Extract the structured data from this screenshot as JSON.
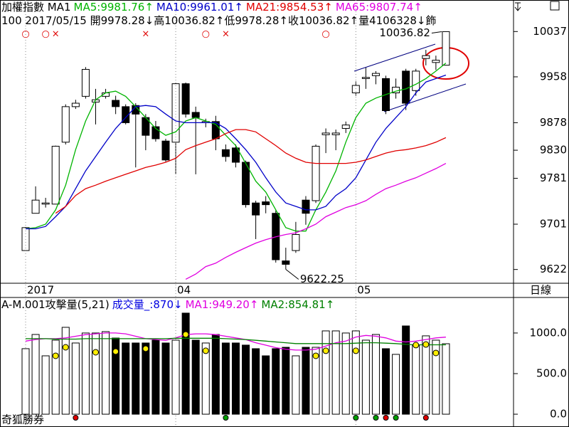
{
  "chart_data": [
    {
      "type": "candlestick",
      "title": "加權指數 MA1",
      "info": "100 2017/05/15 開9978.28↓高10036.82↑低9978.28↑收10036.82↑量4106328↓飾",
      "period": "日線",
      "categories": [
        "2017",
        null,
        null,
        null,
        null,
        null,
        null,
        null,
        null,
        null,
        null,
        null,
        null,
        null,
        null,
        "04",
        null,
        null,
        null,
        null,
        null,
        null,
        null,
        null,
        null,
        null,
        null,
        null,
        null,
        null,
        null,
        null,
        null,
        "05",
        null,
        null,
        null,
        null,
        null,
        null,
        null,
        null,
        null
      ],
      "open": [
        9655,
        9720,
        9736,
        9736,
        9844,
        9906,
        9924,
        9914,
        9924,
        9917,
        9906,
        9908,
        9887,
        9871,
        9846,
        9844,
        9946,
        9896,
        9878,
        9880,
        9831,
        9834,
        9809,
        9738,
        9740,
        9720,
        9637,
        9655,
        9743,
        9742,
        9857,
        9857,
        9868,
        9930,
        9955,
        9960,
        9955,
        9930,
        9968,
        9934,
        9990,
        9983,
        9978.28
      ],
      "high": [
        9696,
        9767,
        9747,
        9838,
        9910,
        9918,
        9975,
        9937,
        9937,
        9925,
        9910,
        9912,
        9893,
        9881,
        9850,
        9948,
        9948,
        9906,
        9885,
        9890,
        9840,
        9840,
        9812,
        9742,
        9750,
        9725,
        9660,
        9705,
        9750,
        9840,
        9868,
        9866,
        9880,
        9950,
        9974,
        9968,
        9960,
        9955,
        9972,
        9972,
        10005,
        9995,
        10036.82
      ],
      "low": [
        9655,
        9720,
        9730,
        9736,
        9840,
        9902,
        9920,
        9875,
        9920,
        9893,
        9875,
        9800,
        9830,
        9845,
        9810,
        9788,
        9887,
        9788,
        9870,
        9830,
        9810,
        9800,
        9730,
        9675,
        9720,
        9634,
        9622.25,
        9651,
        9700,
        9738,
        9825,
        9830,
        9860,
        9925,
        9937,
        9945,
        9893,
        9920,
        9900,
        9925,
        9978,
        9970,
        9978.28
      ],
      "close": [
        9695,
        9743,
        9738,
        9837,
        9906,
        9912,
        9971,
        9918,
        9930,
        9906,
        9878,
        9893,
        9856,
        9850,
        9813,
        9946,
        9893,
        9887,
        9880,
        9850,
        9819,
        9809,
        9735,
        9717,
        9735,
        9639,
        9631,
        9683,
        9720,
        9837,
        9860,
        9860,
        9874,
        9943,
        9957,
        9964,
        9899,
        9940,
        9912,
        9968,
        9995,
        9987,
        10036.82
      ],
      "up_color": "#ffffff",
      "down_color": "#000000",
      "series": [
        {
          "name": "MA5:9981.76↑",
          "color": "#00b400",
          "values": [
            9693,
            9695,
            9701,
            9726,
            9769,
            9831,
            9881,
            9918,
            9930,
            9933,
            9924,
            9906,
            9887,
            9868,
            9856,
            9862,
            9881,
            9887,
            9881,
            9875,
            9856,
            9838,
            9807,
            9776,
            9757,
            9726,
            9695,
            9689,
            9689,
            9726,
            9757,
            9794,
            9844,
            9887,
            9912,
            9921,
            9927,
            9933,
            9937,
            9945,
            9955,
            9968,
            9982
          ]
        },
        {
          "name": "MA10:9961.01↑",
          "color": "#0000c8",
          "values": [
            9693,
            9693,
            9697,
            9714,
            9732,
            9763,
            9794,
            9819,
            9844,
            9868,
            9887,
            9906,
            9908,
            9906,
            9893,
            9881,
            9878,
            9878,
            9878,
            9878,
            9868,
            9850,
            9831,
            9809,
            9782,
            9757,
            9738,
            9732,
            9726,
            9726,
            9732,
            9751,
            9763,
            9782,
            9813,
            9844,
            9868,
            9887,
            9906,
            9930,
            9949,
            9955,
            9961
          ]
        },
        {
          "name": "MA21:9854.53↑",
          "color": "#e00000",
          "values": [
            null,
            null,
            null,
            9720,
            9732,
            9751,
            9763,
            9769,
            9776,
            9782,
            9788,
            9794,
            9800,
            9804,
            9809,
            9816,
            9831,
            9838,
            9844,
            9850,
            9859,
            9866,
            9866,
            9862,
            9850,
            9838,
            9825,
            9816,
            9809,
            9807,
            9807,
            9807,
            9807,
            9809,
            9813,
            9819,
            9825,
            9829,
            9831,
            9834,
            9838,
            9844,
            9852
          ]
        },
        {
          "name": "MA65:9807.74↑",
          "color": "#e000e0",
          "values": [
            null,
            null,
            null,
            null,
            null,
            null,
            null,
            null,
            null,
            null,
            null,
            null,
            null,
            null,
            null,
            null,
            9605,
            9614,
            9627,
            9633,
            9643,
            9652,
            9660,
            9668,
            9674,
            9679,
            9683,
            9686,
            9693,
            9701,
            9714,
            9722,
            9730,
            9735,
            9742,
            9753,
            9763,
            9769,
            9776,
            9782,
            9790,
            9798,
            9807
          ]
        }
      ],
      "signals": [
        "○",
        null,
        "○",
        "×",
        null,
        null,
        null,
        null,
        null,
        null,
        null,
        null,
        "×",
        null,
        null,
        null,
        null,
        null,
        "○",
        null,
        "×",
        null,
        null,
        null,
        null,
        null,
        null,
        null,
        null,
        null,
        "○",
        null,
        null,
        null,
        null,
        null,
        null,
        null,
        null,
        null,
        null,
        null,
        null
      ],
      "signal_color": "#e00000",
      "ylim": [
        9598,
        10092
      ],
      "yticks": [
        10037,
        9958,
        9878,
        9830,
        9781,
        9701,
        9622
      ],
      "xgrid": true
    },
    {
      "type": "bar",
      "title": "A-M.001攻擊量(5,21)",
      "volume_name": "成交量_:870↓",
      "volume_name_color": "#0000e0",
      "values": [
        807,
        982,
        719,
        912,
        1070,
        877,
        1000,
        1000,
        1017,
        938,
        877,
        877,
        877,
        912,
        877,
        912,
        1245,
        912,
        877,
        982,
        877,
        877,
        851,
        807,
        719,
        807,
        824,
        719,
        824,
        824,
        1026,
        1026,
        1000,
        1026,
        912,
        982,
        807,
        737,
        1087,
        851,
        965,
        912,
        868
      ],
      "series": [
        {
          "name": "MA1:949.20↑",
          "color": "#e000e0",
          "values": [
            900,
            920,
            930,
            930,
            940,
            960,
            980,
            990,
            1000,
            1000,
            990,
            960,
            930,
            920,
            910,
            940,
            980,
            990,
            990,
            980,
            960,
            940,
            920,
            880,
            850,
            820,
            800,
            790,
            790,
            800,
            840,
            880,
            900,
            950,
            970,
            960,
            940,
            900,
            890,
            900,
            920,
            940,
            949
          ]
        },
        {
          "name": "MA2:854.81↑",
          "color": "#008000",
          "values": [
            930,
            930,
            930,
            925,
            925,
            925,
            930,
            930,
            930,
            930,
            930,
            930,
            930,
            930,
            930,
            935,
            935,
            935,
            935,
            935,
            930,
            925,
            920,
            910,
            900,
            890,
            880,
            870,
            870,
            870,
            870,
            870,
            870,
            875,
            880,
            880,
            875,
            870,
            860,
            855,
            855,
            855,
            855
          ]
        }
      ],
      "dots": {
        "color": "#ffee00",
        "values": [
          null,
          null,
          null,
          719,
          824,
          null,
          null,
          763,
          null,
          772,
          null,
          null,
          807,
          null,
          null,
          null,
          982,
          null,
          781,
          null,
          null,
          null,
          null,
          null,
          null,
          null,
          null,
          null,
          null,
          719,
          781,
          null,
          null,
          781,
          null,
          null,
          null,
          null,
          null,
          851,
          859,
          754,
          null
        ]
      },
      "bottom_signals": [
        null,
        null,
        null,
        null,
        null,
        "#e00000",
        null,
        null,
        null,
        null,
        null,
        null,
        null,
        null,
        null,
        null,
        null,
        null,
        null,
        null,
        "#00a000",
        null,
        null,
        null,
        null,
        null,
        null,
        null,
        null,
        null,
        null,
        null,
        null,
        "#00a000",
        null,
        "#00a000",
        "#e00000",
        "#00a000",
        null,
        null,
        "#e00000",
        null,
        null
      ],
      "watermark": "奇狐勝券",
      "ylim": [
        -140,
        1420
      ],
      "yticks": [
        {
          "value": 1000,
          "label": "1000.0"
        },
        {
          "value": 500,
          "label": "500.0"
        },
        {
          "value": 0,
          "label": "0.0"
        }
      ]
    }
  ]
}
